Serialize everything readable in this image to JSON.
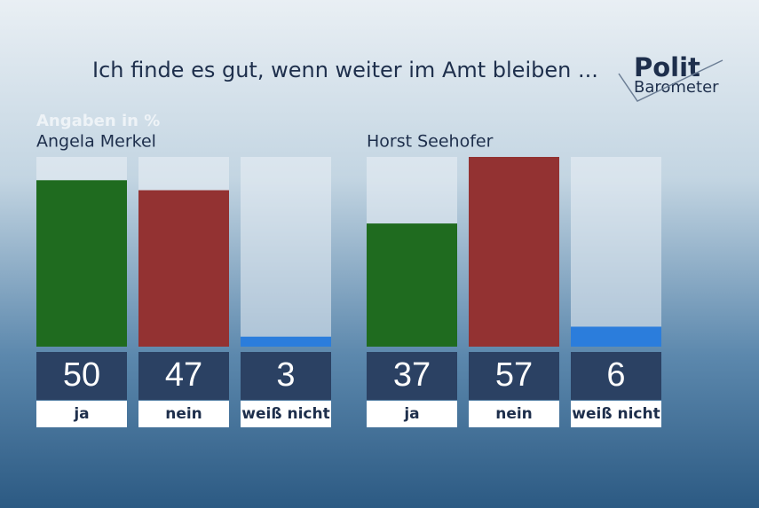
{
  "header": {
    "title": "Ich finde es gut, wenn weiter im Amt bleiben ...",
    "subtitle": "Angaben in %",
    "logo": [
      "Polit",
      "Barometer"
    ]
  },
  "chart_data": [
    {
      "type": "bar",
      "title": "Angela Merkel",
      "categories": [
        "ja",
        "nein",
        "weiß nicht"
      ],
      "values": [
        50,
        47,
        3
      ],
      "colors": [
        "#1f6b1f",
        "#933232",
        "#2b7ddc"
      ],
      "ylim": [
        0,
        57
      ]
    },
    {
      "type": "bar",
      "title": "Horst Seehofer",
      "categories": [
        "ja",
        "nein",
        "weiß nicht"
      ],
      "values": [
        37,
        57,
        6
      ],
      "colors": [
        "#1f6b1f",
        "#933232",
        "#2b7ddc"
      ],
      "ylim": [
        0,
        57
      ]
    }
  ]
}
